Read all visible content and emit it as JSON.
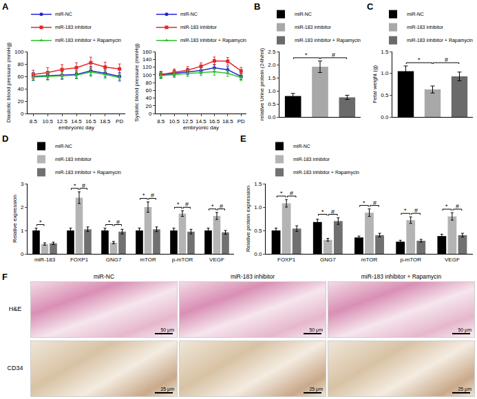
{
  "chart_data": [
    {
      "type": "line",
      "panel_label": "A",
      "y_label": "Diastolic blood pressure (mmHg)",
      "x_label": "embryonic day",
      "categories": [
        "8.5",
        "10.5",
        "12.5",
        "14.5",
        "16.5",
        "18.5",
        "PD"
      ],
      "ylim": [
        0,
        100
      ],
      "yticks": [
        0,
        20,
        40,
        60,
        80,
        100
      ],
      "legend": "top left",
      "grid": false,
      "series": [
        {
          "name": "miR-NC",
          "color": "#2323d6",
          "marker": "circle",
          "line_style": "solid",
          "values": [
            60,
            61,
            62,
            63,
            69,
            65,
            60
          ],
          "errors": [
            6,
            6,
            6,
            6,
            7,
            6,
            6
          ]
        },
        {
          "name": "miR-183 inhibitor",
          "color": "#e8262a",
          "marker": "square",
          "line_style": "solid",
          "values": [
            63,
            66,
            71,
            74,
            82,
            75,
            72
          ],
          "errors": [
            7,
            8,
            8,
            8,
            9,
            8,
            8
          ]
        },
        {
          "name": "miR-183 inhibitor + Rapamycin",
          "color": "#2fc12f",
          "marker": "triangle-up",
          "line_style": "solid",
          "values": [
            59,
            60,
            61,
            62,
            67,
            63,
            58
          ],
          "errors": [
            6,
            6,
            6,
            6,
            7,
            6,
            6
          ]
        }
      ]
    },
    {
      "type": "line",
      "y_label": "Systolic blood pressure (mmHg)",
      "x_label": "embryonic day",
      "categories": [
        "8.5",
        "10.5",
        "12.5",
        "14.5",
        "16.5",
        "18.5",
        "PD"
      ],
      "ylim": [
        0,
        160
      ],
      "yticks": [
        0,
        20,
        40,
        60,
        80,
        100,
        120,
        140,
        160
      ],
      "legend": "top left",
      "grid": false,
      "series": [
        {
          "name": "miR-NC",
          "color": "#2323d6",
          "marker": "circle",
          "line_style": "solid",
          "values": [
            100,
            104,
            108,
            111,
            118,
            113,
            96
          ],
          "errors": [
            8,
            8,
            8,
            8,
            9,
            8,
            8
          ]
        },
        {
          "name": "miR-183 inhibitor",
          "color": "#e8262a",
          "marker": "square",
          "line_style": "solid",
          "values": [
            101,
            107,
            112,
            122,
            136,
            135,
            110
          ],
          "errors": [
            8,
            8,
            9,
            9,
            10,
            10,
            9
          ]
        },
        {
          "name": "miR-183 inhibitor + Rapamycin",
          "color": "#2fc12f",
          "marker": "triangle-up",
          "line_style": "solid",
          "values": [
            98,
            101,
            104,
            106,
            108,
            104,
            93
          ],
          "errors": [
            8,
            8,
            8,
            8,
            9,
            8,
            8
          ]
        }
      ]
    },
    {
      "type": "bar",
      "panel_label": "B",
      "y_label": "relative Urine protein (24h/ml)",
      "categories": [
        "miR-NC",
        "miR-183 inhibitor",
        "miR-183 inhibitor + Rapamycin"
      ],
      "values": [
        0.8,
        1.92,
        0.75
      ],
      "errors": [
        0.1,
        0.22,
        0.08
      ],
      "colors": [
        "#000000",
        "#a8a8a8",
        "#6a6a6a"
      ],
      "ylim": [
        0,
        2.5
      ],
      "yticks": [
        {
          "value": 0,
          "label": "0.0"
        },
        0.5,
        {
          "value": 1,
          "label": "1.0"
        },
        1.5,
        {
          "value": 2,
          "label": "2.0"
        },
        2.5
      ],
      "legend": "top left",
      "tick_labels": "y",
      "grid": false,
      "significance": [
        {
          "text": "*",
          "groups": [
            "miR-NC",
            "miR-183 inhibitor"
          ]
        },
        {
          "text": "#",
          "groups": [
            "miR-183 inhibitor",
            "miR-183 inhibitor + Rapamycin"
          ]
        }
      ]
    },
    {
      "type": "bar",
      "panel_label": "C",
      "y_label": "Fetal weight (g)",
      "categories": [
        "miR-NC",
        "miR-183 inhibitor",
        "miR-183 inhibitor + Rapamycin"
      ],
      "values": [
        1.05,
        0.63,
        0.93
      ],
      "errors": [
        0.12,
        0.08,
        0.1
      ],
      "colors": [
        "#000000",
        "#a8a8a8",
        "#6a6a6a"
      ],
      "ylim": [
        0,
        1.5
      ],
      "yticks": [
        {
          "value": 0,
          "label": "0.0"
        },
        0.5,
        {
          "value": 1,
          "label": "1.0"
        },
        1.5
      ],
      "legend": "top left",
      "tick_labels": "y",
      "grid": false,
      "significance": [
        {
          "text": "*",
          "groups": [
            "miR-NC",
            "miR-183 inhibitor"
          ]
        },
        {
          "text": "#",
          "groups": [
            "miR-183 inhibitor",
            "miR-183 inhibitor + Rapamycin"
          ]
        }
      ]
    },
    {
      "type": "bar",
      "panel_label": "D",
      "y_label": "Relative expression",
      "categories": [
        "miR-183",
        "FOXP1",
        "GNG7",
        "mTOR",
        "p-mTOR",
        "VEGF"
      ],
      "ylim": [
        0,
        3
      ],
      "yticks": [
        0,
        1,
        2,
        3
      ],
      "legend": "top left",
      "grid": false,
      "series": [
        {
          "name": "miR-NC",
          "color": "#000000",
          "values": [
            1,
            1,
            1,
            1,
            1,
            1
          ],
          "errors": [
            0.1,
            0.1,
            0.1,
            0.1,
            0.1,
            0.1
          ]
        },
        {
          "name": "miR-183 inhibitor",
          "color": "#b4b4b4",
          "values": [
            0.42,
            2.4,
            0.48,
            2.0,
            1.72,
            1.62
          ],
          "errors": [
            0.05,
            0.25,
            0.05,
            0.22,
            0.12,
            0.15
          ]
        },
        {
          "name": "miR-183 inhibitor + Rapamycin",
          "color": "#707070",
          "values": [
            0.45,
            1.05,
            0.95,
            1.05,
            0.95,
            0.92
          ],
          "errors": [
            0.05,
            0.1,
            0.1,
            0.1,
            0.1,
            0.08
          ]
        }
      ],
      "significance": [
        {
          "category": "miR-183",
          "text": "*",
          "groups": [
            "miR-NC",
            "miR-183 inhibitor"
          ]
        },
        {
          "category": "FOXP1",
          "text": "*",
          "groups": [
            "miR-NC",
            "miR-183 inhibitor"
          ]
        },
        {
          "category": "FOXP1",
          "text": "#",
          "groups": [
            "miR-183 inhibitor",
            "miR-183 inhibitor + Rapamycin"
          ]
        },
        {
          "category": "GNG7",
          "text": "*",
          "groups": [
            "miR-NC",
            "miR-183 inhibitor"
          ]
        },
        {
          "category": "GNG7",
          "text": "#",
          "groups": [
            "miR-183 inhibitor",
            "miR-183 inhibitor + Rapamycin"
          ]
        },
        {
          "category": "mTOR",
          "text": "*",
          "groups": [
            "miR-NC",
            "miR-183 inhibitor"
          ]
        },
        {
          "category": "mTOR",
          "text": "#",
          "groups": [
            "miR-183 inhibitor",
            "miR-183 inhibitor + Rapamycin"
          ]
        },
        {
          "category": "p-mTOR",
          "text": "*",
          "groups": [
            "miR-NC",
            "miR-183 inhibitor"
          ]
        },
        {
          "category": "p-mTOR",
          "text": "#",
          "groups": [
            "miR-183 inhibitor",
            "miR-183 inhibitor + Rapamycin"
          ]
        },
        {
          "category": "VEGF",
          "text": "*",
          "groups": [
            "miR-NC",
            "miR-183 inhibitor"
          ]
        },
        {
          "category": "VEGF",
          "text": "#",
          "groups": [
            "miR-183 inhibitor",
            "miR-183 inhibitor + Rapamycin"
          ]
        }
      ]
    },
    {
      "type": "bar",
      "panel_label": "E",
      "y_label": "Relative protein expression",
      "categories": [
        "FOXP1",
        "GNG7",
        "mTOR",
        "p-mTOR",
        "VEGF"
      ],
      "ylim": [
        0,
        1.5
      ],
      "yticks": [
        {
          "value": 0,
          "label": "0.0"
        },
        0.5,
        {
          "value": 1,
          "label": "1.0"
        },
        1.5
      ],
      "legend": "top left",
      "grid": false,
      "series": [
        {
          "name": "miR-NC",
          "color": "#000000",
          "values": [
            0.5,
            0.68,
            0.35,
            0.26,
            0.38
          ],
          "errors": [
            0.05,
            0.06,
            0.03,
            0.03,
            0.04
          ]
        },
        {
          "name": "miR-183 inhibitor",
          "color": "#b4b4b4",
          "values": [
            1.08,
            0.3,
            0.88,
            0.72,
            0.8
          ],
          "errors": [
            0.08,
            0.03,
            0.08,
            0.07,
            0.08
          ]
        },
        {
          "name": "miR-183 inhibitor + Rapamycin",
          "color": "#707070",
          "values": [
            0.54,
            0.7,
            0.4,
            0.28,
            0.4
          ],
          "errors": [
            0.06,
            0.07,
            0.04,
            0.03,
            0.04
          ]
        }
      ],
      "significance": [
        {
          "category": "FOXP1",
          "text": "*",
          "groups": [
            "miR-NC",
            "miR-183 inhibitor"
          ]
        },
        {
          "category": "FOXP1",
          "text": "#",
          "groups": [
            "miR-183 inhibitor",
            "miR-183 inhibitor + Rapamycin"
          ]
        },
        {
          "category": "GNG7",
          "text": "*",
          "groups": [
            "miR-NC",
            "miR-183 inhibitor"
          ]
        },
        {
          "category": "GNG7",
          "text": "#",
          "groups": [
            "miR-183 inhibitor",
            "miR-183 inhibitor + Rapamycin"
          ]
        },
        {
          "category": "mTOR",
          "text": "*",
          "groups": [
            "miR-NC",
            "miR-183 inhibitor"
          ]
        },
        {
          "category": "mTOR",
          "text": "#",
          "groups": [
            "miR-183 inhibitor",
            "miR-183 inhibitor + Rapamycin"
          ]
        },
        {
          "category": "p-mTOR",
          "text": "*",
          "groups": [
            "miR-NC",
            "miR-183 inhibitor"
          ]
        },
        {
          "category": "p-mTOR",
          "text": "#",
          "groups": [
            "miR-183 inhibitor",
            "miR-183 inhibitor + Rapamycin"
          ]
        },
        {
          "category": "VEGF",
          "text": "*",
          "groups": [
            "miR-NC",
            "miR-183 inhibitor"
          ]
        },
        {
          "category": "VEGF",
          "text": "#",
          "groups": [
            "miR-183 inhibitor",
            "miR-183 inhibitor + Rapamycin"
          ]
        }
      ]
    }
  ],
  "image_panel": {
    "panel_label": "F",
    "columns": [
      "miR-NC",
      "miR-183 inhibitor",
      "miR-183 inhibitor + Rapamycin"
    ],
    "rows": [
      {
        "label": "H&E",
        "scale_bar": "50 μm"
      },
      {
        "label": "CD34",
        "scale_bar": "25 μm"
      }
    ]
  }
}
